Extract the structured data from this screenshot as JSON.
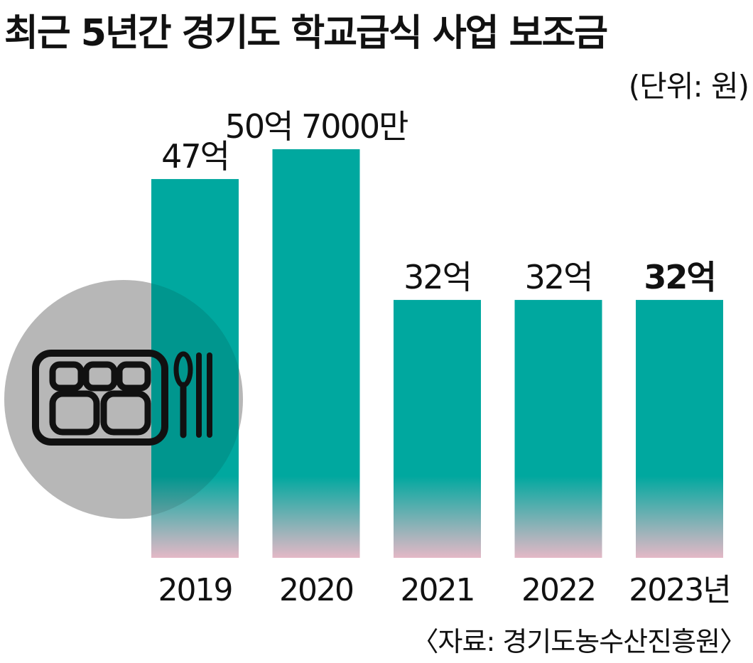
{
  "chart_data": {
    "type": "bar",
    "title": "최근 5년간 경기도 학교급식 사업 보조금",
    "unit_label": "(단위: 원)",
    "source": "〈자료: 경기도농수산진흥원〉",
    "categories": [
      "2019",
      "2020",
      "2021",
      "2022",
      "2023년"
    ],
    "values": [
      4700000000,
      5070000000,
      3200000000,
      3200000000,
      3200000000
    ],
    "data_labels": [
      "47억",
      "50억 7000만",
      "32억",
      "32억",
      "32억"
    ],
    "highlight_index": 4,
    "ylim": [
      0,
      5070000000
    ],
    "grid": false,
    "legend": "none",
    "colors": {
      "bar": "#00a89f",
      "bar_fade": "#e4b8c6",
      "circle": "#cccccc",
      "text": "#111111"
    },
    "icon": "meal-tray-with-spoon-icon"
  }
}
